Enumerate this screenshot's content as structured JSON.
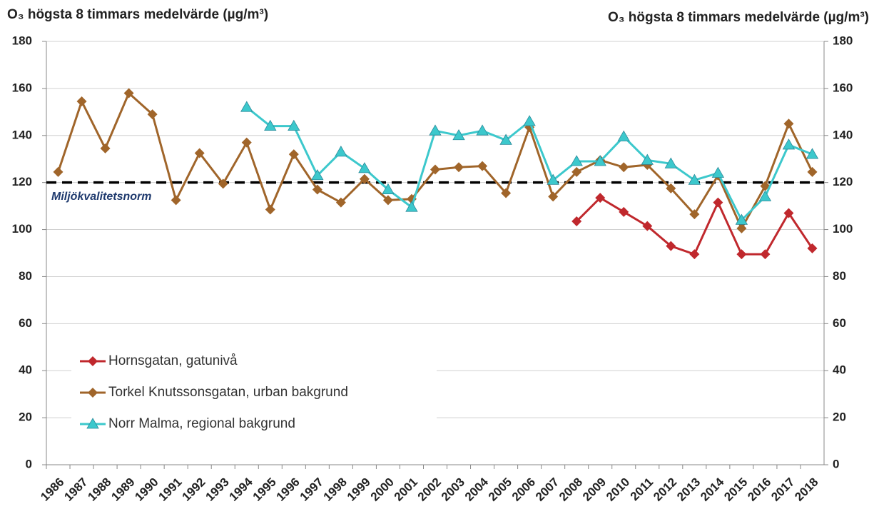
{
  "chart_data": {
    "type": "line",
    "y_label": "O₃ högsta  8 timmars  medelvärde (µg/m³)",
    "y2_label": "O₃ högsta  8 timmars  medelvärde (µg/m³)",
    "categories": [
      "1986",
      "1987",
      "1988",
      "1989",
      "1990",
      "1991",
      "1992",
      "1993",
      "1994",
      "1995",
      "1996",
      "1997",
      "1998",
      "1999",
      "2000",
      "2001",
      "2002",
      "2003",
      "2004",
      "2005",
      "2006",
      "2007",
      "2008",
      "2009",
      "2010",
      "2011",
      "2012",
      "2013",
      "2014",
      "2015",
      "2016",
      "2017",
      "2018"
    ],
    "series": [
      {
        "name": "Hornsgatan, gatunivå",
        "color": "#c0282d",
        "marker": "diamond",
        "values": [
          null,
          null,
          null,
          null,
          null,
          null,
          null,
          null,
          null,
          null,
          null,
          null,
          null,
          null,
          null,
          null,
          null,
          null,
          null,
          null,
          null,
          null,
          103.5,
          113.5,
          107.5,
          101.5,
          93,
          89.5,
          111.5,
          89.5,
          89.5,
          107,
          92
        ]
      },
      {
        "name": "Torkel Knutssonsgatan, urban bakgrund",
        "color": "#a0652a",
        "marker": "diamond",
        "values": [
          124.5,
          154.5,
          134.5,
          158,
          149,
          112.5,
          132.5,
          119.5,
          137,
          108.5,
          132,
          117,
          111.5,
          121.5,
          112.5,
          113,
          125.5,
          126.5,
          127,
          115.5,
          143.5,
          114,
          124.5,
          129.5,
          126.5,
          127.5,
          117.5,
          106.5,
          123,
          100.5,
          118.5,
          145,
          124.5
        ]
      },
      {
        "name": "Norr Malma, regional bakgrund",
        "color": "#3cc8cc",
        "marker": "triangle",
        "values": [
          null,
          null,
          null,
          null,
          null,
          null,
          null,
          null,
          152,
          144,
          144,
          123,
          133,
          126,
          117,
          109.5,
          142,
          140,
          142,
          138,
          146,
          121,
          129,
          129,
          139.5,
          129.5,
          128,
          121,
          124,
          104,
          114,
          136,
          132
        ]
      }
    ],
    "reference_line": {
      "value": 120,
      "label": "Miljökvalitetsnorm"
    },
    "ylim": [
      0,
      180
    ],
    "yticks": [
      0,
      20,
      40,
      60,
      80,
      100,
      120,
      140,
      160,
      180
    ],
    "y2lim": [
      0,
      180
    ],
    "y2ticks": [
      0,
      20,
      40,
      60,
      80,
      100,
      120,
      140,
      160,
      180
    ],
    "grid": true,
    "legend": "bottom-left"
  }
}
